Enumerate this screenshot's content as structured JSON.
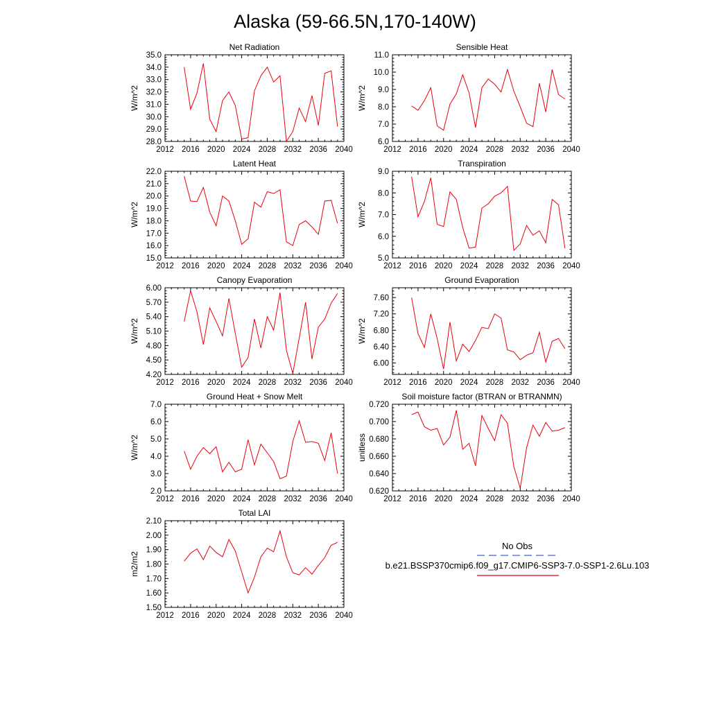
{
  "title": "Alaska (59-66.5N,170-140W)",
  "colors": {
    "series": "#e8000b",
    "obs": "#4060c8",
    "axis": "#000000"
  },
  "legend": {
    "obs_label": "No Obs",
    "series_label": "b.e21.BSSP370cmip6.f09_g17.CMIP6-SSP3-7.0-SSP1-2.6Lu.103"
  },
  "chart_data": [
    {
      "type": "line",
      "title": "Net Radiation",
      "ylabel": "W/m^2",
      "xlim": [
        2012,
        2040
      ],
      "ylim": [
        28.0,
        35.0
      ],
      "xticks": [
        2012,
        2016,
        2020,
        2024,
        2028,
        2032,
        2036,
        2040
      ],
      "yticks": [
        28.0,
        29.0,
        30.0,
        31.0,
        32.0,
        33.0,
        34.0,
        35.0
      ],
      "ytick_decimals": 1,
      "x": [
        2015,
        2016,
        2017,
        2018,
        2019,
        2020,
        2021,
        2022,
        2023,
        2024,
        2025,
        2026,
        2027,
        2028,
        2029,
        2030,
        2031,
        2032,
        2033,
        2034,
        2035,
        2036,
        2037,
        2038,
        2039
      ],
      "values": [
        34.0,
        30.6,
        31.9,
        34.3,
        29.8,
        28.8,
        31.3,
        32.0,
        30.9,
        28.2,
        28.3,
        32.1,
        33.3,
        34.0,
        32.8,
        33.3,
        28.0,
        28.8,
        30.7,
        29.6,
        31.7,
        29.3,
        33.5,
        33.7,
        29.2
      ]
    },
    {
      "type": "line",
      "title": "Sensible Heat",
      "ylabel": "W/m^2",
      "xlim": [
        2012,
        2040
      ],
      "ylim": [
        6.0,
        11.0
      ],
      "xticks": [
        2012,
        2016,
        2020,
        2024,
        2028,
        2032,
        2036,
        2040
      ],
      "yticks": [
        6.0,
        7.0,
        8.0,
        9.0,
        10.0,
        11.0
      ],
      "ytick_decimals": 1,
      "x": [
        2015,
        2016,
        2017,
        2018,
        2019,
        2020,
        2021,
        2022,
        2023,
        2024,
        2025,
        2026,
        2027,
        2028,
        2029,
        2030,
        2031,
        2032,
        2033,
        2034,
        2035,
        2036,
        2037,
        2038,
        2039
      ],
      "values": [
        8.05,
        7.8,
        8.35,
        9.1,
        6.9,
        6.65,
        8.15,
        8.75,
        9.85,
        8.8,
        6.8,
        9.1,
        9.6,
        9.3,
        8.85,
        10.15,
        8.9,
        8.0,
        7.05,
        6.85,
        9.35,
        7.7,
        10.15,
        8.7,
        8.45
      ]
    },
    {
      "type": "line",
      "title": "Latent Heat",
      "ylabel": "W/m^2",
      "xlim": [
        2012,
        2040
      ],
      "ylim": [
        15.0,
        22.0
      ],
      "xticks": [
        2012,
        2016,
        2020,
        2024,
        2028,
        2032,
        2036,
        2040
      ],
      "yticks": [
        15.0,
        16.0,
        17.0,
        18.0,
        19.0,
        20.0,
        21.0,
        22.0
      ],
      "ytick_decimals": 1,
      "x": [
        2015,
        2016,
        2017,
        2018,
        2019,
        2020,
        2021,
        2022,
        2023,
        2024,
        2025,
        2026,
        2027,
        2028,
        2029,
        2030,
        2031,
        2032,
        2033,
        2034,
        2035,
        2036,
        2037,
        2038,
        2039
      ],
      "values": [
        21.6,
        19.6,
        19.55,
        20.7,
        18.7,
        17.6,
        20.0,
        19.6,
        18.0,
        16.1,
        16.55,
        19.5,
        19.1,
        20.35,
        20.2,
        20.5,
        16.3,
        16.0,
        17.7,
        18.0,
        17.5,
        16.9,
        19.6,
        19.65,
        17.8
      ]
    },
    {
      "type": "line",
      "title": "Transpiration",
      "ylabel": "W/m^2",
      "xlim": [
        2012,
        2040
      ],
      "ylim": [
        5.0,
        9.0
      ],
      "xticks": [
        2012,
        2016,
        2020,
        2024,
        2028,
        2032,
        2036,
        2040
      ],
      "yticks": [
        5.0,
        6.0,
        7.0,
        8.0,
        9.0
      ],
      "ytick_decimals": 1,
      "x": [
        2015,
        2016,
        2017,
        2018,
        2019,
        2020,
        2021,
        2022,
        2023,
        2024,
        2025,
        2026,
        2027,
        2028,
        2029,
        2030,
        2031,
        2032,
        2033,
        2034,
        2035,
        2036,
        2037,
        2038,
        2039
      ],
      "values": [
        8.75,
        6.9,
        7.6,
        8.7,
        6.55,
        6.45,
        8.05,
        7.7,
        6.4,
        5.45,
        5.5,
        7.3,
        7.5,
        7.85,
        8.0,
        8.3,
        5.35,
        5.65,
        6.5,
        6.05,
        6.25,
        5.7,
        7.7,
        7.45,
        5.45
      ]
    },
    {
      "type": "line",
      "title": "Canopy Evaporation",
      "ylabel": "W/m^2",
      "xlim": [
        2012,
        2040
      ],
      "ylim": [
        4.2,
        6.0
      ],
      "xticks": [
        2012,
        2016,
        2020,
        2024,
        2028,
        2032,
        2036,
        2040
      ],
      "yticks": [
        4.2,
        4.5,
        4.8,
        5.1,
        5.4,
        5.7,
        6.0
      ],
      "ytick_decimals": 2,
      "x": [
        2015,
        2016,
        2017,
        2018,
        2019,
        2020,
        2021,
        2022,
        2023,
        2024,
        2025,
        2026,
        2027,
        2028,
        2029,
        2030,
        2031,
        2032,
        2033,
        2034,
        2035,
        2036,
        2037,
        2038,
        2039
      ],
      "values": [
        5.3,
        5.94,
        5.5,
        4.82,
        5.58,
        5.3,
        5.0,
        5.78,
        5.05,
        4.35,
        4.55,
        5.35,
        4.75,
        5.4,
        5.12,
        5.9,
        4.7,
        4.22,
        4.95,
        5.7,
        4.52,
        5.18,
        5.35,
        5.68,
        5.88
      ]
    },
    {
      "type": "line",
      "title": "Ground Evaporation",
      "ylabel": "W/m^2",
      "xlim": [
        2012,
        2040
      ],
      "ylim": [
        5.72,
        7.84
      ],
      "xticks": [
        2012,
        2016,
        2020,
        2024,
        2028,
        2032,
        2036,
        2040
      ],
      "yticks": [
        6.0,
        6.4,
        6.8,
        7.2,
        7.6
      ],
      "ytick_decimals": 2,
      "x": [
        2015,
        2016,
        2017,
        2018,
        2019,
        2020,
        2021,
        2022,
        2023,
        2024,
        2025,
        2026,
        2027,
        2028,
        2029,
        2030,
        2031,
        2032,
        2033,
        2034,
        2035,
        2036,
        2037,
        2038,
        2039
      ],
      "values": [
        7.6,
        6.72,
        6.38,
        7.2,
        6.6,
        5.85,
        7.0,
        6.05,
        6.46,
        6.28,
        6.55,
        6.87,
        6.84,
        7.2,
        7.1,
        6.32,
        6.27,
        6.08,
        6.19,
        6.25,
        6.75,
        6.02,
        6.53,
        6.6,
        6.35
      ]
    },
    {
      "type": "line",
      "title": "Ground Heat + Snow Melt",
      "ylabel": "W/m^2",
      "xlim": [
        2012,
        2040
      ],
      "ylim": [
        2.0,
        7.0
      ],
      "xticks": [
        2012,
        2016,
        2020,
        2024,
        2028,
        2032,
        2036,
        2040
      ],
      "yticks": [
        2.0,
        3.0,
        4.0,
        5.0,
        6.0,
        7.0
      ],
      "ytick_decimals": 1,
      "x": [
        2015,
        2016,
        2017,
        2018,
        2019,
        2020,
        2021,
        2022,
        2023,
        2024,
        2025,
        2026,
        2027,
        2028,
        2029,
        2030,
        2031,
        2032,
        2033,
        2034,
        2035,
        2036,
        2037,
        2038,
        2039
      ],
      "values": [
        4.3,
        3.25,
        4.0,
        4.5,
        4.15,
        4.55,
        3.1,
        3.65,
        3.1,
        3.25,
        4.95,
        3.5,
        4.7,
        4.2,
        3.7,
        2.7,
        2.85,
        4.85,
        6.05,
        4.8,
        4.85,
        4.75,
        3.75,
        5.35,
        3.0
      ]
    },
    {
      "type": "line",
      "title": "Soil moisture factor (BTRAN or BTRANMN)",
      "ylabel": "unitless",
      "xlim": [
        2012,
        2040
      ],
      "ylim": [
        0.62,
        0.72
      ],
      "xticks": [
        2012,
        2016,
        2020,
        2024,
        2028,
        2032,
        2036,
        2040
      ],
      "yticks": [
        0.62,
        0.64,
        0.66,
        0.68,
        0.7,
        0.72
      ],
      "ytick_decimals": 3,
      "x": [
        2015,
        2016,
        2017,
        2018,
        2019,
        2020,
        2021,
        2022,
        2023,
        2024,
        2025,
        2026,
        2027,
        2028,
        2029,
        2030,
        2031,
        2032,
        2033,
        2034,
        2035,
        2036,
        2037,
        2038,
        2039
      ],
      "values": [
        0.708,
        0.711,
        0.694,
        0.69,
        0.692,
        0.673,
        0.682,
        0.713,
        0.668,
        0.675,
        0.649,
        0.707,
        0.692,
        0.678,
        0.708,
        0.698,
        0.648,
        0.623,
        0.67,
        0.696,
        0.683,
        0.699,
        0.689,
        0.69,
        0.693
      ]
    },
    {
      "type": "line",
      "title": "Total LAI",
      "ylabel": "m2/m2",
      "xlim": [
        2012,
        2040
      ],
      "ylim": [
        1.5,
        2.1
      ],
      "xticks": [
        2012,
        2016,
        2020,
        2024,
        2028,
        2032,
        2036,
        2040
      ],
      "yticks": [
        1.5,
        1.6,
        1.7,
        1.8,
        1.9,
        2.0,
        2.1
      ],
      "ytick_decimals": 2,
      "x": [
        2015,
        2016,
        2017,
        2018,
        2019,
        2020,
        2021,
        2022,
        2023,
        2024,
        2025,
        2026,
        2027,
        2028,
        2029,
        2030,
        2031,
        2032,
        2033,
        2034,
        2035,
        2036,
        2037,
        2038,
        2039
      ],
      "values": [
        1.82,
        1.875,
        1.905,
        1.83,
        1.925,
        1.88,
        1.85,
        1.97,
        1.89,
        1.745,
        1.6,
        1.71,
        1.85,
        1.91,
        1.885,
        2.03,
        1.85,
        1.74,
        1.725,
        1.775,
        1.73,
        1.79,
        1.845,
        1.93,
        1.95
      ]
    }
  ]
}
